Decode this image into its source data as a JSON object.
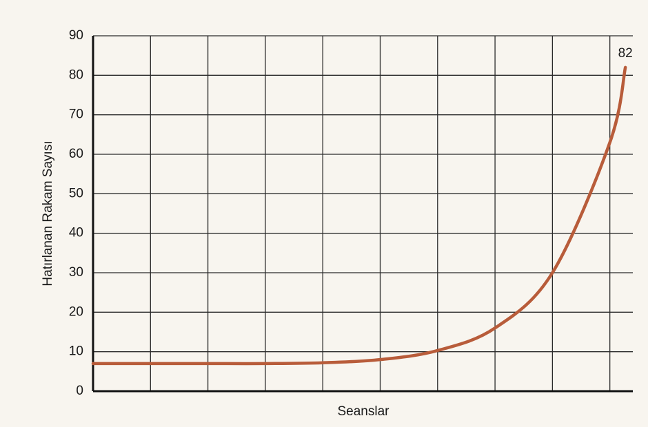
{
  "chart_data": {
    "type": "line",
    "x_label": "Seanslar",
    "y_label": "Hatırlanan Rakam Sayısı",
    "x": [
      0,
      1,
      2,
      3,
      4,
      5,
      6,
      7,
      8,
      9,
      9.27
    ],
    "series": [
      {
        "color": "#b85c3a",
        "values": [
          7,
          7,
          7,
          7,
          7.2,
          8,
          10.3,
          16,
          30,
          63,
          82
        ]
      }
    ],
    "data_label_index": 10,
    "xlim": [
      0,
      9.4
    ],
    "xticks": [
      0,
      1,
      2,
      3,
      4,
      5,
      6,
      7,
      8,
      9
    ],
    "ylim": [
      0,
      90
    ],
    "yticks": [
      0,
      10,
      20,
      30,
      40,
      50,
      60,
      70,
      80,
      90
    ],
    "grid": true
  }
}
